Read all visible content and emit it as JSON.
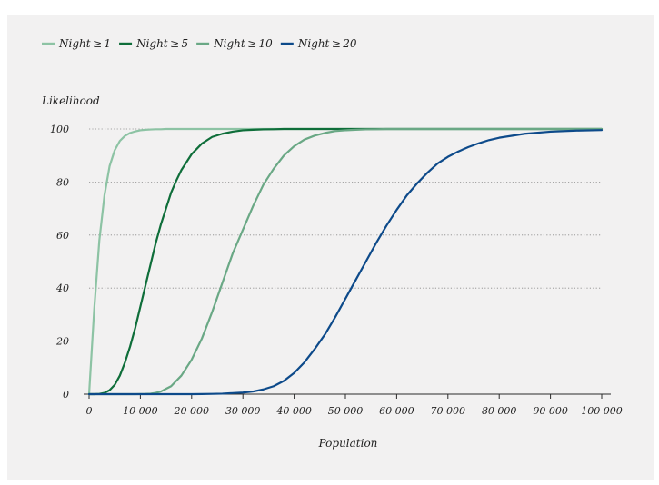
{
  "chart_data": {
    "type": "line",
    "title": "",
    "xlabel": "Population",
    "ylabel": "Likelihood",
    "xlim": [
      0,
      100000
    ],
    "ylim": [
      0,
      100
    ],
    "grid": true,
    "legend_position": "top-left",
    "x_ticks": [
      0,
      10000,
      20000,
      30000,
      40000,
      50000,
      60000,
      70000,
      80000,
      90000,
      100000
    ],
    "x_tick_labels": [
      "0",
      "10 000",
      "20 000",
      "30 000",
      "40 000",
      "50 000",
      "60 000",
      "70 000",
      "80 000",
      "90 000",
      "100 000"
    ],
    "y_ticks": [
      0,
      20,
      40,
      60,
      80,
      100
    ],
    "y_tick_labels": [
      "0",
      "20",
      "40",
      "60",
      "80",
      "100"
    ],
    "x": [
      0,
      1000,
      2000,
      3000,
      4000,
      5000,
      6000,
      7000,
      8000,
      9000,
      10000,
      11000,
      12000,
      13000,
      14000,
      15000,
      16000,
      17000,
      18000,
      20000,
      22000,
      24000,
      26000,
      28000,
      30000,
      32000,
      34000,
      36000,
      38000,
      40000,
      42000,
      44000,
      46000,
      48000,
      50000,
      52000,
      54000,
      56000,
      58000,
      60000,
      62000,
      64000,
      66000,
      68000,
      70000,
      72000,
      74000,
      76000,
      78000,
      80000,
      85000,
      90000,
      95000,
      100000
    ],
    "series": [
      {
        "name": "Night ≥ 1",
        "color": "#8dc3a4",
        "values": [
          0,
          32,
          58,
          75,
          86,
          92,
          95.5,
          97.4,
          98.5,
          99.1,
          99.5,
          99.7,
          99.8,
          99.9,
          99.9,
          100,
          100,
          100,
          100,
          100,
          100,
          100,
          100,
          100,
          100,
          100,
          100,
          100,
          100,
          100,
          100,
          100,
          100,
          100,
          100,
          100,
          100,
          100,
          100,
          100,
          100,
          100,
          100,
          100,
          100,
          100,
          100,
          100,
          100,
          100,
          100,
          100,
          100,
          100
        ]
      },
      {
        "name": "Night ≥ 5",
        "color": "#0f6e3a",
        "values": [
          0,
          0,
          0.1,
          0.5,
          1.5,
          3.5,
          7,
          12,
          18,
          25,
          33,
          41,
          49,
          57,
          64,
          70,
          76,
          80.5,
          84.5,
          90.5,
          94.5,
          97,
          98.2,
          99,
          99.5,
          99.7,
          99.85,
          99.9,
          100,
          100,
          100,
          100,
          100,
          100,
          100,
          100,
          100,
          100,
          100,
          100,
          100,
          100,
          100,
          100,
          100,
          100,
          100,
          100,
          100,
          100,
          100,
          100,
          100,
          100
        ]
      },
      {
        "name": "Night ≥ 10",
        "color": "#6aa885",
        "values": [
          0,
          0,
          0,
          0,
          0,
          0,
          0,
          0,
          0,
          0,
          0.05,
          0.1,
          0.2,
          0.5,
          1,
          2,
          3,
          5,
          7,
          13,
          21,
          31,
          42,
          53,
          62,
          71,
          79,
          85,
          90,
          93.5,
          96,
          97.5,
          98.5,
          99.2,
          99.5,
          99.7,
          99.85,
          99.9,
          100,
          100,
          100,
          100,
          100,
          100,
          100,
          100,
          100,
          100,
          100,
          100,
          100,
          100,
          100,
          100
        ]
      },
      {
        "name": "Night ≥ 20",
        "color": "#0d4a8a",
        "values": [
          0,
          0,
          0,
          0,
          0,
          0,
          0,
          0,
          0,
          0,
          0,
          0,
          0,
          0,
          0,
          0,
          0,
          0,
          0,
          0,
          0.05,
          0.1,
          0.2,
          0.4,
          0.6,
          1,
          1.8,
          3,
          5,
          8,
          12,
          17,
          22.5,
          29,
          36,
          43,
          50,
          57,
          63.5,
          69.5,
          75,
          79.5,
          83.5,
          87,
          89.5,
          91.5,
          93.2,
          94.6,
          95.8,
          96.7,
          98.2,
          99,
          99.4,
          99.6
        ]
      }
    ]
  }
}
